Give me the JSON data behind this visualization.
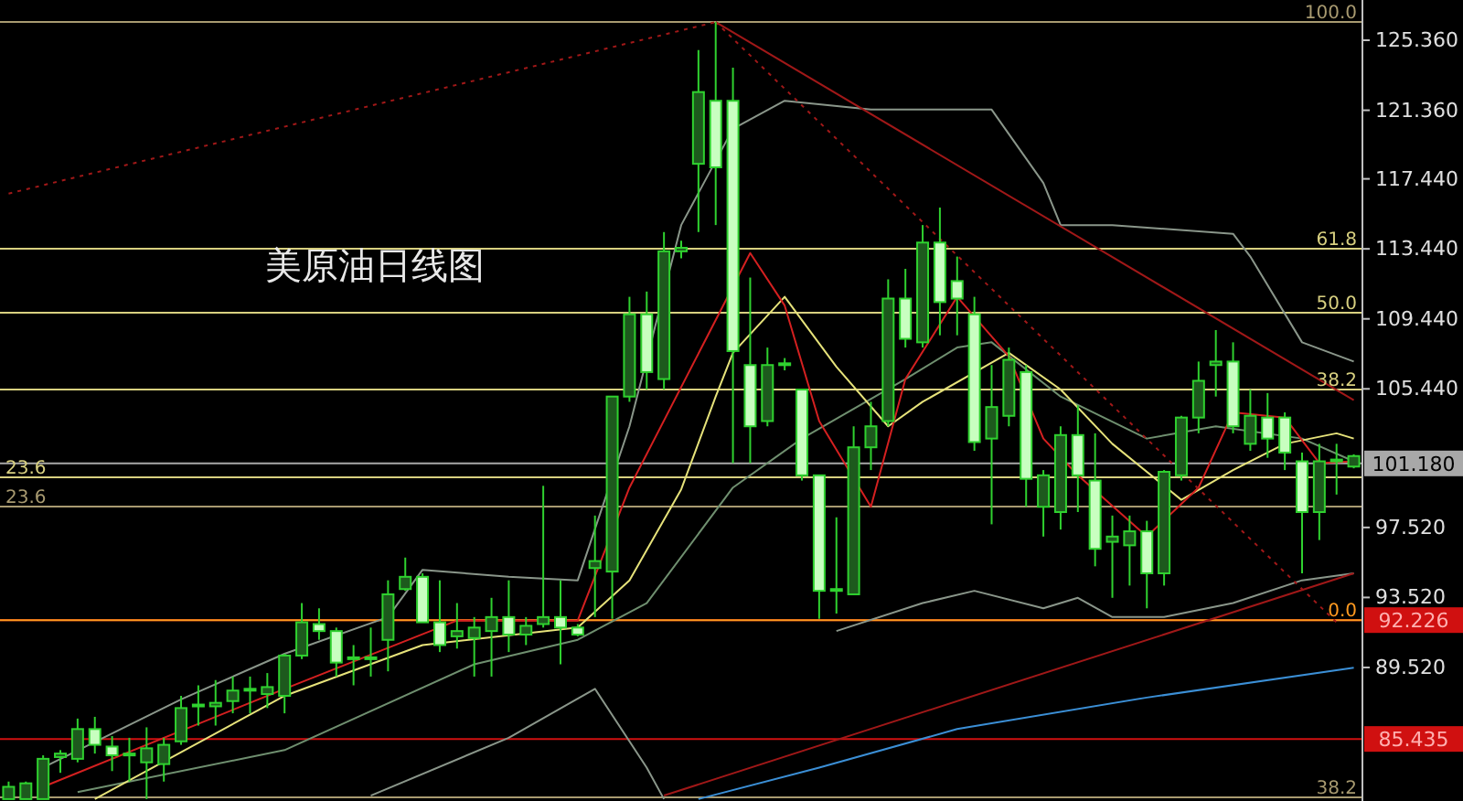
{
  "chart_data": {
    "type": "candlestick",
    "title": "美原油日线图",
    "categories": [
      null,
      null,
      null,
      null,
      null,
      null,
      null,
      null,
      null,
      null,
      null,
      null,
      null,
      null,
      null,
      null,
      null,
      null,
      null,
      null,
      null,
      null,
      null,
      null,
      null,
      null,
      null,
      null,
      null,
      null,
      null,
      null,
      null,
      null,
      null,
      null,
      null,
      null,
      null,
      null,
      null,
      null,
      null,
      null,
      null,
      null,
      null,
      null,
      null,
      null,
      null,
      null,
      null,
      null,
      null,
      null,
      null,
      null,
      null,
      null,
      null,
      null,
      null,
      null,
      null,
      null,
      null,
      null,
      null,
      null,
      null,
      null,
      null,
      null,
      null,
      null,
      null,
      null,
      null
    ],
    "ohlc": [
      [
        82.0,
        83.0,
        82.0,
        82.7
      ],
      [
        82.0,
        83.0,
        82.0,
        82.9
      ],
      [
        82.0,
        84.5,
        82.0,
        84.3
      ],
      [
        84.4,
        84.8,
        83.5,
        84.6
      ],
      [
        84.3,
        86.6,
        84.1,
        86.0
      ],
      [
        86.0,
        86.7,
        84.6,
        85.1
      ],
      [
        85.0,
        85.6,
        83.6,
        84.5
      ],
      [
        84.5,
        85.5,
        83.0,
        84.6
      ],
      [
        84.1,
        86.1,
        82.0,
        84.9
      ],
      [
        84.0,
        85.5,
        83.0,
        85.1
      ],
      [
        85.3,
        87.9,
        85.1,
        87.2
      ],
      [
        87.3,
        88.5,
        86.2,
        87.4
      ],
      [
        87.3,
        88.8,
        86.2,
        87.5
      ],
      [
        87.6,
        89.0,
        86.9,
        88.2
      ],
      [
        88.2,
        89.0,
        86.9,
        88.3
      ],
      [
        88.0,
        89.2,
        87.2,
        88.4
      ],
      [
        87.9,
        90.3,
        86.9,
        90.2
      ],
      [
        90.2,
        93.2,
        90.0,
        92.1
      ],
      [
        92.0,
        92.9,
        91.1,
        91.6
      ],
      [
        91.6,
        91.8,
        89.0,
        89.8
      ],
      [
        90.0,
        90.8,
        88.5,
        90.1
      ],
      [
        90.1,
        91.8,
        89.0,
        90.0
      ],
      [
        91.1,
        94.5,
        89.3,
        93.7
      ],
      [
        94.0,
        95.8,
        93.9,
        94.7
      ],
      [
        94.7,
        94.9,
        92.1,
        92.1
      ],
      [
        92.1,
        94.5,
        90.4,
        90.8
      ],
      [
        91.3,
        93.2,
        90.6,
        91.6
      ],
      [
        91.2,
        92.4,
        89.0,
        91.8
      ],
      [
        91.6,
        93.5,
        89.0,
        92.4
      ],
      [
        92.4,
        94.5,
        90.4,
        91.4
      ],
      [
        91.4,
        92.4,
        90.8,
        91.9
      ],
      [
        92.0,
        99.9,
        91.8,
        92.4
      ],
      [
        92.4,
        94.5,
        89.7,
        91.8
      ],
      [
        91.8,
        92.0,
        91.3,
        91.4
      ],
      [
        95.2,
        98.2,
        92.4,
        95.6
      ],
      [
        95.0,
        105.0,
        92.3,
        105.0
      ],
      [
        105.0,
        110.7,
        104.7,
        109.7
      ],
      [
        109.7,
        111.0,
        105.4,
        106.4
      ],
      [
        106.0,
        114.4,
        105.4,
        113.3
      ],
      [
        113.3,
        113.9,
        112.9,
        113.5
      ],
      [
        118.3,
        124.8,
        114.4,
        122.4
      ],
      [
        121.9,
        126.4,
        114.8,
        118.1
      ],
      [
        121.9,
        123.8,
        101.2,
        107.6
      ],
      [
        106.8,
        111.8,
        101.2,
        103.3
      ],
      [
        103.6,
        107.8,
        103.3,
        106.8
      ],
      [
        106.8,
        107.2,
        106.5,
        106.9
      ],
      [
        105.4,
        105.4,
        100.2,
        100.5
      ],
      [
        100.5,
        100.5,
        92.3,
        93.9
      ],
      [
        93.9,
        98.1,
        92.6,
        94.0
      ],
      [
        93.7,
        103.3,
        93.7,
        102.1
      ],
      [
        102.1,
        104.7,
        100.8,
        103.3
      ],
      [
        103.6,
        111.7,
        103.3,
        110.6
      ],
      [
        110.6,
        112.3,
        107.8,
        108.3
      ],
      [
        108.1,
        114.8,
        107.8,
        113.8
      ],
      [
        113.8,
        115.8,
        108.5,
        110.4
      ],
      [
        111.6,
        113.0,
        108.5,
        110.6
      ],
      [
        109.7,
        110.7,
        101.9,
        102.4
      ],
      [
        102.6,
        106.8,
        97.7,
        104.4
      ],
      [
        103.9,
        107.8,
        103.3,
        107.1
      ],
      [
        106.4,
        106.8,
        98.7,
        100.3
      ],
      [
        98.7,
        100.8,
        97.0,
        100.5
      ],
      [
        98.4,
        103.3,
        97.4,
        102.8
      ],
      [
        102.8,
        104.5,
        98.4,
        100.5
      ],
      [
        100.2,
        102.9,
        95.3,
        96.3
      ],
      [
        96.7,
        98.2,
        93.5,
        97.0
      ],
      [
        96.5,
        98.2,
        94.2,
        97.3
      ],
      [
        97.3,
        97.9,
        92.9,
        94.9
      ],
      [
        94.9,
        100.8,
        94.2,
        100.7
      ],
      [
        100.5,
        103.9,
        100.2,
        103.8
      ],
      [
        103.8,
        107.0,
        102.9,
        105.9
      ],
      [
        106.8,
        108.8,
        105.0,
        107.0
      ],
      [
        107.0,
        108.1,
        102.9,
        103.3
      ],
      [
        102.3,
        105.4,
        101.9,
        103.9
      ],
      [
        103.8,
        105.2,
        101.5,
        102.6
      ],
      [
        103.8,
        104.1,
        100.8,
        101.8
      ],
      [
        101.3,
        101.8,
        94.9,
        98.4
      ],
      [
        98.4,
        102.3,
        96.8,
        101.3
      ],
      [
        101.3,
        102.3,
        99.4,
        101.4
      ],
      [
        101.0,
        101.7,
        100.9,
        101.6
      ]
    ],
    "series": [
      {
        "type": "line",
        "color": "#8a968a",
        "values": [
          null,
          null,
          83.8,
          null,
          null,
          null,
          null,
          null,
          null,
          null,
          87.7,
          null,
          null,
          null,
          null,
          null,
          90.3,
          null,
          null,
          null,
          null,
          null,
          92.4,
          null,
          95.1,
          null,
          null,
          null,
          null,
          94.7,
          null,
          null,
          null,
          94.5,
          null,
          null,
          103.3,
          null,
          null,
          114.8,
          null,
          null,
          120.3,
          null,
          null,
          121.9,
          null,
          null,
          null,
          null,
          121.4,
          null,
          null,
          null,
          null,
          null,
          null,
          121.4,
          null,
          null,
          117.2,
          114.8,
          null,
          null,
          114.8,
          null,
          null,
          null,
          null,
          null,
          null,
          114.3,
          113.0,
          null,
          null,
          108.1,
          null,
          null,
          107.0
        ]
      },
      {
        "type": "line",
        "color": "#8a968a",
        "values": [
          null,
          null,
          null,
          null,
          null,
          null,
          null,
          null,
          null,
          null,
          null,
          null,
          null,
          null,
          null,
          null,
          null,
          null,
          null,
          null,
          null,
          82.2,
          null,
          null,
          null,
          null,
          null,
          null,
          null,
          85.5,
          null,
          null,
          null,
          null,
          88.3,
          null,
          null,
          83.8,
          82.0,
          null,
          null,
          null,
          null,
          null,
          null,
          null,
          null,
          null,
          null,
          null,
          null,
          null,
          null,
          null,
          null,
          null,
          null,
          null,
          null,
          null,
          null,
          null,
          null,
          null,
          null,
          null,
          null,
          null,
          null,
          null,
          null,
          null,
          null,
          null,
          null,
          null,
          null,
          null,
          null
        ]
      },
      {
        "type": "line",
        "color": "#8a968a",
        "values": [
          null,
          null,
          null,
          null,
          null,
          null,
          null,
          null,
          null,
          null,
          null,
          null,
          null,
          null,
          null,
          null,
          null,
          null,
          null,
          null,
          null,
          null,
          null,
          null,
          null,
          null,
          null,
          null,
          null,
          null,
          null,
          null,
          null,
          null,
          null,
          null,
          null,
          null,
          null,
          null,
          null,
          null,
          null,
          null,
          null,
          null,
          null,
          null,
          91.6,
          null,
          null,
          null,
          null,
          93.2,
          null,
          null,
          93.9,
          null,
          null,
          null,
          92.9,
          null,
          93.5,
          null,
          92.4,
          null,
          null,
          92.4,
          null,
          null,
          null,
          93.2,
          null,
          null,
          null,
          94.5,
          null,
          null,
          94.9
        ]
      },
      {
        "type": "line",
        "color": "#6f8f6f",
        "values": [
          null,
          null,
          null,
          null,
          82.4,
          null,
          null,
          null,
          null,
          null,
          null,
          null,
          null,
          null,
          null,
          null,
          84.8,
          null,
          null,
          null,
          null,
          null,
          null,
          null,
          null,
          null,
          null,
          89.7,
          null,
          null,
          null,
          null,
          null,
          91.1,
          null,
          null,
          null,
          93.2,
          null,
          null,
          null,
          null,
          99.8,
          null,
          null,
          null,
          102.6,
          null,
          null,
          null,
          null,
          null,
          106.0,
          null,
          null,
          107.8,
          null,
          108.1,
          null,
          null,
          null,
          105.0,
          null,
          null,
          null,
          null,
          102.6,
          null,
          null,
          null,
          103.3,
          null,
          null,
          null,
          null,
          102.6,
          null,
          null,
          101.3
        ]
      },
      {
        "type": "line",
        "color": "#e6e27a",
        "values": [
          null,
          null,
          null,
          null,
          null,
          82.0,
          null,
          null,
          null,
          null,
          null,
          null,
          null,
          null,
          null,
          null,
          87.9,
          null,
          null,
          null,
          null,
          null,
          null,
          null,
          90.8,
          null,
          null,
          null,
          null,
          null,
          null,
          null,
          null,
          91.8,
          null,
          null,
          94.5,
          null,
          null,
          99.7,
          null,
          105.0,
          107.5,
          null,
          null,
          110.7,
          null,
          null,
          106.7,
          null,
          null,
          103.3,
          null,
          104.7,
          null,
          null,
          null,
          null,
          107.5,
          null,
          null,
          105.4,
          null,
          null,
          102.3,
          null,
          null,
          null,
          99.1,
          null,
          null,
          100.8,
          null,
          null,
          102.3,
          null,
          null,
          102.9,
          102.6
        ]
      },
      {
        "type": "line",
        "color": "#d42020",
        "values": [
          null,
          null,
          82.7,
          null,
          null,
          null,
          null,
          null,
          null,
          null,
          null,
          null,
          null,
          null,
          null,
          null,
          88.3,
          null,
          null,
          null,
          null,
          null,
          null,
          null,
          null,
          null,
          92.2,
          null,
          null,
          null,
          null,
          null,
          null,
          92.2,
          null,
          null,
          99.8,
          null,
          null,
          null,
          null,
          null,
          null,
          113.2,
          null,
          110.2,
          null,
          103.6,
          null,
          null,
          98.7,
          null,
          106.0,
          null,
          null,
          110.7,
          null,
          null,
          107.3,
          null,
          102.6,
          null,
          100.5,
          null,
          null,
          null,
          97.0,
          null,
          null,
          99.8,
          null,
          104.1,
          null,
          null,
          103.8,
          null,
          101.2,
          null,
          101.3
        ]
      },
      {
        "type": "line",
        "color": "#3b8fd6",
        "values": [
          null,
          null,
          null,
          null,
          null,
          null,
          null,
          null,
          null,
          null,
          null,
          null,
          null,
          null,
          null,
          null,
          null,
          null,
          null,
          null,
          null,
          null,
          null,
          null,
          null,
          null,
          null,
          null,
          null,
          null,
          null,
          null,
          null,
          null,
          null,
          null,
          null,
          null,
          null,
          null,
          82.0,
          null,
          null,
          null,
          null,
          null,
          null,
          83.8,
          null,
          null,
          null,
          null,
          null,
          null,
          null,
          86.0,
          null,
          null,
          null,
          null,
          null,
          null,
          null,
          null,
          null,
          null,
          87.8,
          null,
          null,
          null,
          null,
          null,
          null,
          null,
          null,
          null,
          null,
          null,
          89.5
        ]
      },
      {
        "type": "line",
        "color": "#a01818",
        "values": [
          null,
          null,
          null,
          null,
          null,
          null,
          null,
          null,
          null,
          null,
          null,
          null,
          null,
          null,
          null,
          null,
          null,
          null,
          null,
          null,
          null,
          null,
          null,
          null,
          null,
          null,
          null,
          null,
          null,
          null,
          null,
          null,
          null,
          null,
          null,
          null,
          null,
          null,
          null,
          null,
          null,
          126.4,
          null,
          null,
          null,
          null,
          null,
          null,
          null,
          null,
          null,
          null,
          null,
          null,
          null,
          null,
          null,
          null,
          null,
          null,
          null,
          null,
          null,
          null,
          null,
          null,
          null,
          null,
          null,
          null,
          null,
          null,
          null,
          null,
          null,
          null,
          null,
          null,
          104.8
        ]
      },
      {
        "type": "line",
        "color": "#a01818",
        "line_style": "dotted",
        "values": [
          null,
          null,
          null,
          null,
          null,
          null,
          null,
          null,
          null,
          null,
          null,
          null,
          null,
          null,
          null,
          null,
          null,
          null,
          null,
          null,
          null,
          null,
          null,
          null,
          null,
          null,
          null,
          null,
          null,
          null,
          null,
          null,
          null,
          null,
          null,
          null,
          null,
          null,
          null,
          null,
          null,
          126.4,
          null,
          null,
          null,
          null,
          null,
          null,
          null,
          null,
          null,
          null,
          null,
          null,
          null,
          null,
          null,
          null,
          null,
          null,
          null,
          null,
          null,
          null,
          null,
          null,
          null,
          null,
          null,
          null,
          null,
          null,
          null,
          null,
          null,
          null,
          null,
          92.1,
          null
        ]
      },
      {
        "type": "line",
        "color": "#a01818",
        "line_style": "dotted",
        "values": [
          116.6,
          null,
          null,
          null,
          null,
          null,
          null,
          null,
          null,
          null,
          null,
          null,
          null,
          null,
          null,
          null,
          null,
          null,
          null,
          null,
          null,
          null,
          null,
          null,
          null,
          null,
          null,
          null,
          null,
          null,
          null,
          null,
          null,
          null,
          null,
          null,
          null,
          null,
          null,
          null,
          null,
          126.4,
          null,
          null,
          null,
          null,
          null,
          null,
          null,
          null,
          null,
          null,
          null,
          null,
          null,
          null,
          null,
          null,
          null,
          null,
          null,
          null,
          null,
          null,
          null,
          null,
          null,
          null,
          null,
          null,
          null,
          null,
          null,
          null,
          null,
          null,
          null,
          null,
          null
        ]
      },
      {
        "type": "line",
        "color": "#a01818",
        "values": [
          null,
          null,
          null,
          null,
          null,
          null,
          null,
          null,
          null,
          null,
          null,
          null,
          null,
          null,
          null,
          null,
          null,
          null,
          null,
          null,
          null,
          null,
          null,
          null,
          null,
          null,
          null,
          null,
          null,
          null,
          null,
          null,
          null,
          null,
          null,
          null,
          null,
          null,
          82.2,
          null,
          null,
          null,
          null,
          null,
          null,
          null,
          null,
          null,
          null,
          null,
          null,
          null,
          null,
          null,
          null,
          null,
          null,
          null,
          null,
          null,
          null,
          null,
          null,
          null,
          null,
          null,
          null,
          null,
          null,
          null,
          null,
          null,
          null,
          null,
          null,
          null,
          null,
          null,
          94.9
        ]
      }
    ],
    "ylim": [
      81.89,
      127.66
    ],
    "yticks": [
      {
        "value": 125.36,
        "label": "125.360"
      },
      {
        "value": 121.36,
        "label": "121.360"
      },
      {
        "value": 117.44,
        "label": "117.440"
      },
      {
        "value": 113.44,
        "label": "113.440"
      },
      {
        "value": 109.44,
        "label": "109.440"
      },
      {
        "value": 105.44,
        "label": "105.440"
      },
      {
        "value": 97.52,
        "label": "97.520"
      },
      {
        "value": 93.52,
        "label": "93.520"
      },
      {
        "value": 89.52,
        "label": "89.520"
      }
    ],
    "tick_labels": "y",
    "ref_lines": [
      {
        "axis": "y",
        "value": 101.18,
        "label": "101.180",
        "color": "#a8a8a8"
      },
      {
        "axis": "y",
        "value": 92.226,
        "label": "92.226",
        "color": "#d01010"
      },
      {
        "axis": "y",
        "value": 85.435,
        "label": "85.435",
        "color": "#d01010"
      },
      {
        "axis": "y",
        "value": 126.41,
        "color": "#a89a70"
      },
      {
        "axis": "y",
        "value": 113.45,
        "color": "#d8d080"
      },
      {
        "axis": "y",
        "value": 109.79,
        "color": "#d8d080"
      },
      {
        "axis": "y",
        "value": 105.4,
        "color": "#d8d080"
      },
      {
        "axis": "y",
        "value": 100.39,
        "color": "#d8d080"
      },
      {
        "axis": "y",
        "value": 98.71,
        "color": "#a89a70"
      },
      {
        "axis": "y",
        "value": 92.226,
        "color": "#ff9a20"
      },
      {
        "axis": "y",
        "value": 82.1,
        "color": "#a89a70"
      }
    ],
    "annotations": [
      {
        "text": "100.0",
        "y": 126.41
      },
      {
        "text": "61.8",
        "y": 113.45
      },
      {
        "text": "50.0",
        "y": 109.79
      },
      {
        "text": "38.2",
        "y": 105.4
      },
      {
        "text": "23.6",
        "y": 100.39
      },
      {
        "text": "23.6",
        "y": 98.71
      },
      {
        "text": "0.0",
        "y": 92.226
      },
      {
        "text": "38.2",
        "y": 82.1
      }
    ]
  }
}
